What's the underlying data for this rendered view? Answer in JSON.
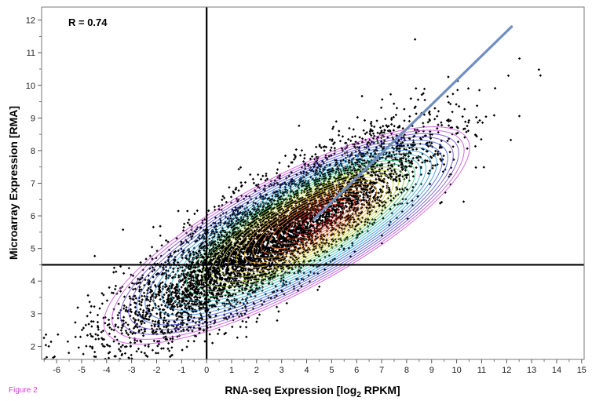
{
  "figure_caption": "Figure 2",
  "chart_data": {
    "type": "scatter",
    "title": "",
    "annotation": "R = 0.74",
    "xlabel": "RNA-seq Expression [log",
    "xlabel_subscript": "2",
    "xlabel_suffix": " RPKM]",
    "ylabel": "Microarray Expression [RMA]",
    "xlim": [
      -6.6,
      15.1
    ],
    "ylim": [
      1.6,
      12.4
    ],
    "x_ticks": [
      -6,
      -5,
      -4,
      -3,
      -2,
      -1,
      0,
      1,
      2,
      3,
      4,
      5,
      6,
      7,
      8,
      9,
      10,
      11,
      12,
      13,
      14,
      15
    ],
    "y_ticks": [
      2,
      3,
      4,
      5,
      6,
      7,
      8,
      9,
      10,
      11,
      12
    ],
    "grid": false,
    "reference_lines": {
      "x": 0,
      "y": 4.5
    },
    "density_contours": true,
    "trend_line": {
      "x": [
        4.3,
        12.2
      ],
      "y": [
        5.9,
        11.8
      ],
      "color": "#6f8fc0"
    },
    "point_color": "#000000",
    "distribution": {
      "n_points": 6500,
      "center": [
        2.6,
        5.4
      ],
      "x_sd": 3.0,
      "slope": 0.45,
      "residual_sd": 0.8
    }
  }
}
